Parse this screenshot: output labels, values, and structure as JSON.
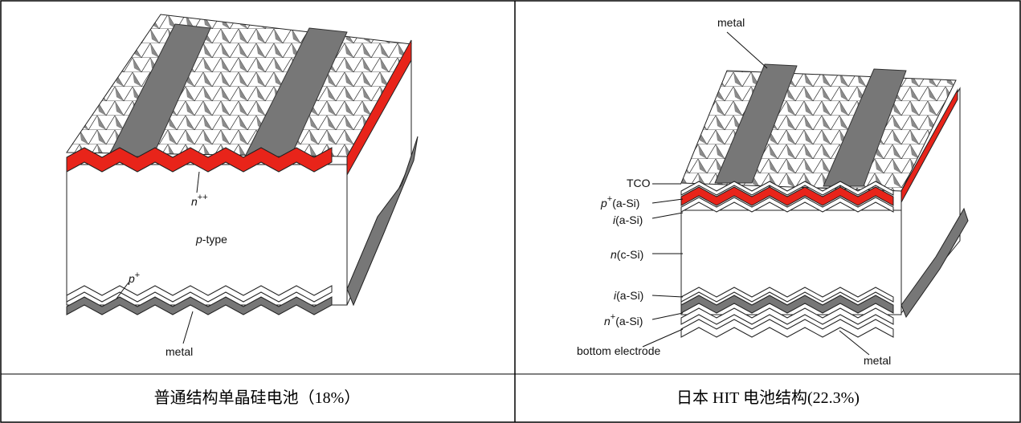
{
  "left": {
    "labels": {
      "n_plus": [
        "n",
        "++"
      ],
      "p_type": [
        "p",
        "-type"
      ],
      "p_plus": [
        "p",
        "+"
      ],
      "metal": "metal"
    },
    "caption": "普通结构单晶硅电池（18%）"
  },
  "right": {
    "labels": {
      "metal_top": "metal",
      "tco": "TCO",
      "p_asi": [
        "p",
        "+",
        "(a-Si)"
      ],
      "i_asi_top": [
        "i",
        "(a-Si)"
      ],
      "n_csi": [
        "n",
        "(c-Si)"
      ],
      "i_asi_bottom": [
        "i",
        "(a-Si)"
      ],
      "n_asi": [
        "n",
        "+",
        "(a-Si)"
      ],
      "bottom_electrode": "bottom electrode",
      "metal_bottom": "metal"
    },
    "caption": "日本 HIT 电池结构(22.3%)"
  }
}
